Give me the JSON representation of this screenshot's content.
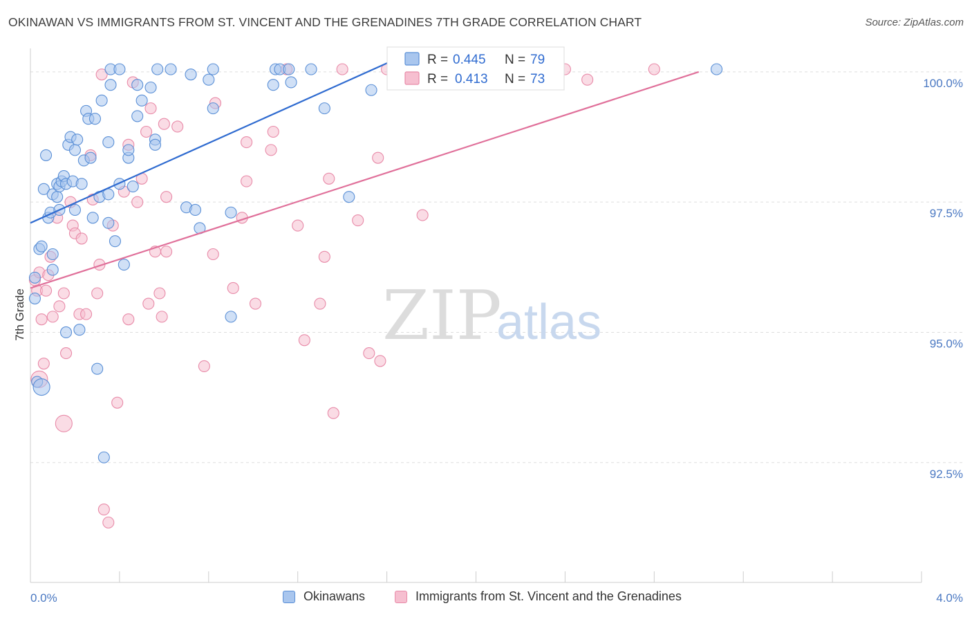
{
  "title": "OKINAWAN VS IMMIGRANTS FROM ST. VINCENT AND THE GRENADINES 7TH GRADE CORRELATION CHART",
  "source": "Source: ZipAtlas.com",
  "watermark": {
    "zip": "ZIP",
    "atlas": "atlas"
  },
  "colors": {
    "blue_fill": "#a9c6ee",
    "blue_stroke": "#5a8fd6",
    "blue_line": "#2f6bd0",
    "pink_fill": "#f6bfd0",
    "pink_stroke": "#e88aa8",
    "pink_line": "#e0709a",
    "grid": "#dddddd",
    "tick_text": "#4a78c2"
  },
  "legend_stats": [
    {
      "r_label": "R =",
      "r_value": "0.445",
      "n_label": "N =",
      "n_value": "79"
    },
    {
      "r_label": "R =",
      "r_value": "0.413",
      "n_label": "N =",
      "n_value": "73"
    }
  ],
  "legend_bottom": [
    {
      "label": "Okinawans"
    },
    {
      "label": "Immigrants from St. Vincent and the Grenadines"
    }
  ],
  "chart_data": {
    "type": "scatter",
    "title": "OKINAWAN VS IMMIGRANTS FROM ST. VINCENT AND THE GRENADINES 7TH GRADE CORRELATION CHART",
    "xlabel": "",
    "ylabel": "7th Grade",
    "xlim": [
      0.0,
      4.0
    ],
    "ylim": [
      90.2,
      100.45
    ],
    "x_tick_labels": [
      "0.0%",
      "4.0%"
    ],
    "y_ticks": [
      92.5,
      95.0,
      97.5,
      100.0
    ],
    "y_tick_labels": [
      "92.5%",
      "95.0%",
      "97.5%",
      "100.0%"
    ],
    "grid": true,
    "legend_position": "top-center",
    "series": [
      {
        "name": "Okinawans",
        "color": "#a9c6ee",
        "trend": {
          "x": [
            0.0,
            1.67
          ],
          "y": [
            97.1,
            100.3
          ]
        },
        "points": [
          [
            0.02,
            95.65
          ],
          [
            0.02,
            96.05
          ],
          [
            0.03,
            94.05
          ],
          [
            0.04,
            96.6
          ],
          [
            0.05,
            96.65
          ],
          [
            0.06,
            97.75
          ],
          [
            0.07,
            98.4
          ],
          [
            0.08,
            97.2
          ],
          [
            0.09,
            97.3
          ],
          [
            0.1,
            96.5
          ],
          [
            0.1,
            96.2
          ],
          [
            0.1,
            97.65
          ],
          [
            0.12,
            97.85
          ],
          [
            0.12,
            97.6
          ],
          [
            0.13,
            97.8
          ],
          [
            0.13,
            97.35
          ],
          [
            0.14,
            97.9
          ],
          [
            0.15,
            98.0
          ],
          [
            0.16,
            97.85
          ],
          [
            0.16,
            95.0
          ],
          [
            0.17,
            98.6
          ],
          [
            0.18,
            98.75
          ],
          [
            0.19,
            97.9
          ],
          [
            0.2,
            97.35
          ],
          [
            0.2,
            98.5
          ],
          [
            0.21,
            98.7
          ],
          [
            0.22,
            95.05
          ],
          [
            0.23,
            97.85
          ],
          [
            0.24,
            98.3
          ],
          [
            0.25,
            99.25
          ],
          [
            0.26,
            99.1
          ],
          [
            0.27,
            98.35
          ],
          [
            0.28,
            97.2
          ],
          [
            0.29,
            99.1
          ],
          [
            0.3,
            94.3
          ],
          [
            0.31,
            97.6
          ],
          [
            0.32,
            99.45
          ],
          [
            0.33,
            92.6
          ],
          [
            0.35,
            97.1
          ],
          [
            0.35,
            98.65
          ],
          [
            0.35,
            97.65
          ],
          [
            0.36,
            99.75
          ],
          [
            0.36,
            100.05
          ],
          [
            0.38,
            96.75
          ],
          [
            0.4,
            97.85
          ],
          [
            0.4,
            100.05
          ],
          [
            0.42,
            96.3
          ],
          [
            0.44,
            98.35
          ],
          [
            0.44,
            98.5
          ],
          [
            0.46,
            97.8
          ],
          [
            0.48,
            99.75
          ],
          [
            0.48,
            99.15
          ],
          [
            0.5,
            99.45
          ],
          [
            0.54,
            99.7
          ],
          [
            0.56,
            98.7
          ],
          [
            0.56,
            98.6
          ],
          [
            0.57,
            100.05
          ],
          [
            0.63,
            100.05
          ],
          [
            0.7,
            97.4
          ],
          [
            0.72,
            99.95
          ],
          [
            0.74,
            97.35
          ],
          [
            0.76,
            97.0
          ],
          [
            0.8,
            99.85
          ],
          [
            0.82,
            99.3
          ],
          [
            0.82,
            100.05
          ],
          [
            0.9,
            97.3
          ],
          [
            0.9,
            95.3
          ],
          [
            1.09,
            99.75
          ],
          [
            1.1,
            100.05
          ],
          [
            1.12,
            100.05
          ],
          [
            1.16,
            100.05
          ],
          [
            1.17,
            99.8
          ],
          [
            1.26,
            100.05
          ],
          [
            1.32,
            99.3
          ],
          [
            1.43,
            97.6
          ],
          [
            1.53,
            99.65
          ],
          [
            1.67,
            100.05
          ],
          [
            3.08,
            100.05
          ],
          [
            0.05,
            93.95
          ]
        ]
      },
      {
        "name": "Immigrants from St. Vincent and the Grenadines",
        "color": "#f6bfd0",
        "trend": {
          "x": [
            0.0,
            3.0
          ],
          "y": [
            95.85,
            100.0
          ]
        },
        "points": [
          [
            0.02,
            96.0
          ],
          [
            0.03,
            95.8
          ],
          [
            0.04,
            96.15
          ],
          [
            0.05,
            95.25
          ],
          [
            0.06,
            94.4
          ],
          [
            0.07,
            95.8
          ],
          [
            0.08,
            96.1
          ],
          [
            0.09,
            96.45
          ],
          [
            0.1,
            95.3
          ],
          [
            0.12,
            97.2
          ],
          [
            0.13,
            95.5
          ],
          [
            0.15,
            95.75
          ],
          [
            0.16,
            94.6
          ],
          [
            0.18,
            97.5
          ],
          [
            0.19,
            97.05
          ],
          [
            0.2,
            96.9
          ],
          [
            0.22,
            95.35
          ],
          [
            0.23,
            96.8
          ],
          [
            0.25,
            95.35
          ],
          [
            0.27,
            98.4
          ],
          [
            0.28,
            97.55
          ],
          [
            0.3,
            95.75
          ],
          [
            0.31,
            96.3
          ],
          [
            0.32,
            99.95
          ],
          [
            0.33,
            91.6
          ],
          [
            0.35,
            91.35
          ],
          [
            0.37,
            97.05
          ],
          [
            0.39,
            93.65
          ],
          [
            0.42,
            97.7
          ],
          [
            0.44,
            98.6
          ],
          [
            0.44,
            95.25
          ],
          [
            0.46,
            99.8
          ],
          [
            0.48,
            97.5
          ],
          [
            0.5,
            97.95
          ],
          [
            0.52,
            98.85
          ],
          [
            0.53,
            95.55
          ],
          [
            0.54,
            99.3
          ],
          [
            0.56,
            96.55
          ],
          [
            0.58,
            95.75
          ],
          [
            0.59,
            95.3
          ],
          [
            0.6,
            99.0
          ],
          [
            0.61,
            96.55
          ],
          [
            0.61,
            97.6
          ],
          [
            0.66,
            98.95
          ],
          [
            0.78,
            94.35
          ],
          [
            0.82,
            96.5
          ],
          [
            0.83,
            99.4
          ],
          [
            0.91,
            95.85
          ],
          [
            0.95,
            97.2
          ],
          [
            0.97,
            98.65
          ],
          [
            0.97,
            97.9
          ],
          [
            1.01,
            95.55
          ],
          [
            1.08,
            98.5
          ],
          [
            1.09,
            98.85
          ],
          [
            1.15,
            100.05
          ],
          [
            1.2,
            97.05
          ],
          [
            1.23,
            94.85
          ],
          [
            1.3,
            95.55
          ],
          [
            1.32,
            96.45
          ],
          [
            1.34,
            97.95
          ],
          [
            1.36,
            93.45
          ],
          [
            1.4,
            100.05
          ],
          [
            1.47,
            97.15
          ],
          [
            1.52,
            94.6
          ],
          [
            1.56,
            98.35
          ],
          [
            1.57,
            94.45
          ],
          [
            1.6,
            100.05
          ],
          [
            1.76,
            97.25
          ],
          [
            2.4,
            100.05
          ],
          [
            2.5,
            99.85
          ],
          [
            2.8,
            100.05
          ],
          [
            0.04,
            94.1
          ],
          [
            0.15,
            93.25
          ]
        ]
      }
    ]
  }
}
